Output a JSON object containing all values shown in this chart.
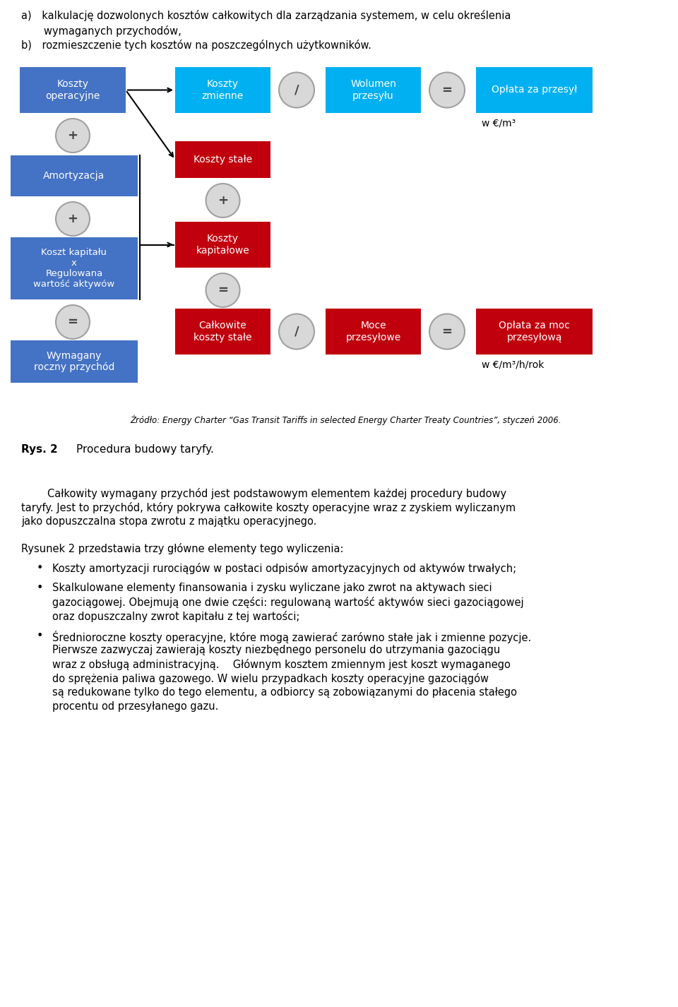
{
  "page_width": 9.6,
  "page_height": 14.26,
  "dpi": 100,
  "bg_color": "#ffffff",
  "text_color": "#000000",
  "blue_dark": "#4472C4",
  "blue_light": "#00B0F0",
  "red_dark": "#C0000C",
  "gray_circle": "#D8D8D8",
  "gray_circle_stroke": "#A0A0A0",
  "white_text": "#ffffff",
  "header_a": "a) kalkulację dozwolonych kosztów całkowitych dla zarządzania systemem, w celu określenia",
  "header_a2": "wymaganych przychodów,",
  "header_b": "b) rozmieszczenie tych kosztów na poszczególnych użytkowników.",
  "source_text": "Źródło: Energy Charter “Gas Transit Tariffs in selected Energy Charter Treaty Countries”, styczeń 2006.",
  "rys_label": "Rys. 2",
  "rys_text": "Procedura budowy taryfy.",
  "p1_lines": [
    "        Całkowity wymagany przychód jest podstawowym elementem każdej procedury budowy",
    "taryfy. Jest to przychód, który pokrywa całkowite koszty operacyjne wraz z zyskiem wyliczanym",
    "jako dopuszczalna stopa zwrotu z majątku operacyjnego."
  ],
  "p2_intro": "Rysunek 2 przedstawia trzy główne elementy tego wyliczenia:",
  "b1": "Koszty amortyzacji rurociągów w postaci odpisów amortyzacyjnych od aktywów trwałych;",
  "b2_lines": [
    "Skalkulowane elementy finansowania i zysku wyliczane jako zwrot na aktywach sieci",
    "gazociągowej. Obejmują one dwie części: regulowaną wartość aktywów sieci gazociągowej",
    "oraz dopuszczalny zwrot kapitału z tej wartości;"
  ],
  "b3_lines": [
    "Średnioroczne koszty operacyjne, które mogą zawierać zarówno stałe jak i zmienne pozycje.",
    "Pierwsze zazwyczaj zawierają koszty niezbędnego personelu do utrzymania gazociągu",
    "wraz z obsługą administracyjną.  Głównym kosztem zmiennym jest koszt wymaganego",
    "do sprężenia paliwa gazowego. W wielu przypadkach koszty operacyjne gazociągów",
    "są redukowane tylko do tego elementu, a odbiorcy są zobowiązanymi do płacenia stałego",
    "procentu od przesyłanego gazu."
  ]
}
